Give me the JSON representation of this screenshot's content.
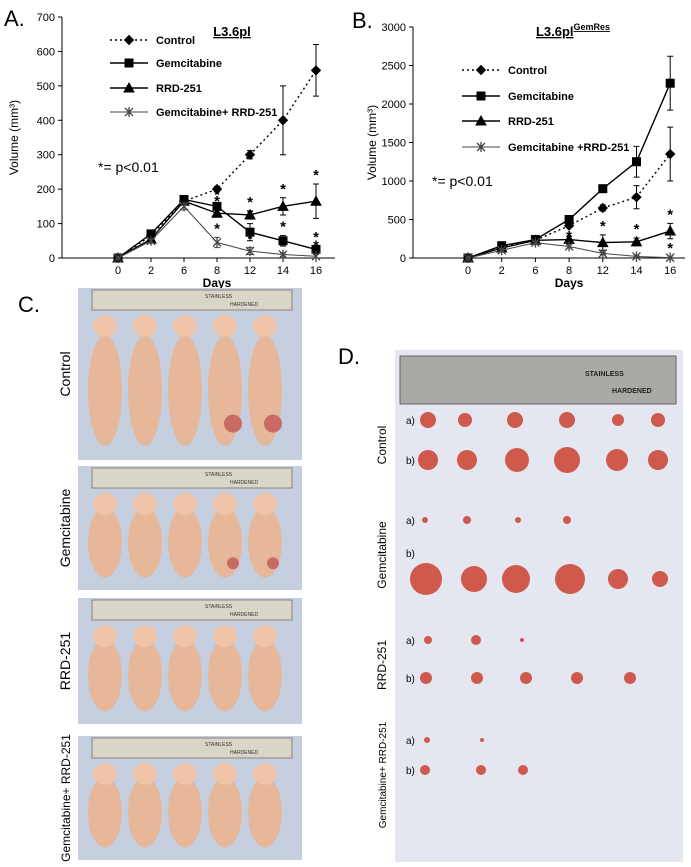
{
  "chart_data": [
    {
      "type": "line",
      "title": "L3.6pl",
      "y_label": "Volume (mm³)",
      "x_label": "Days",
      "categories": [
        "0",
        "2",
        "6",
        "8",
        "12",
        "14",
        "16"
      ],
      "ylim": [
        0,
        700
      ],
      "yticks": [
        0,
        100,
        200,
        300,
        400,
        500,
        600,
        700
      ],
      "sig_symbol": "*",
      "note": "*= p<0.01",
      "series": [
        {
          "name": "Control",
          "color": "#000000",
          "dash": "dotted",
          "marker": "diamond",
          "values": [
            0,
            65,
            165,
            200,
            300,
            400,
            545
          ],
          "errors": [
            0,
            5,
            10,
            8,
            12,
            100,
            75
          ],
          "significant": [
            false,
            false,
            false,
            false,
            false,
            false,
            false
          ]
        },
        {
          "name": "Gemcitabine",
          "color": "#000000",
          "dash": "solid",
          "marker": "square",
          "values": [
            0,
            70,
            170,
            150,
            75,
            50,
            25
          ],
          "errors": [
            0,
            5,
            8,
            8,
            25,
            15,
            10
          ],
          "significant": [
            false,
            false,
            false,
            true,
            true,
            true,
            true
          ]
        },
        {
          "name": "RRD-251",
          "color": "#000000",
          "dash": "solid",
          "marker": "triangle",
          "values": [
            0,
            55,
            165,
            130,
            125,
            150,
            165
          ],
          "errors": [
            0,
            5,
            8,
            10,
            12,
            25,
            50
          ],
          "significant": [
            false,
            false,
            false,
            true,
            true,
            true,
            true
          ]
        },
        {
          "name": "Gemcitabine+ RRD-251",
          "color": "#444444",
          "dash": "solid",
          "marker": "star",
          "values": [
            0,
            50,
            150,
            45,
            20,
            10,
            5
          ],
          "errors": [
            0,
            5,
            10,
            15,
            10,
            5,
            5
          ],
          "significant": [
            false,
            false,
            false,
            true,
            true,
            true,
            true
          ]
        }
      ]
    },
    {
      "type": "line",
      "title": "L3.6pl",
      "title_sup": "GemRes",
      "y_label": "Volume (mm³)",
      "x_label": "Days",
      "categories": [
        "0",
        "2",
        "6",
        "8",
        "12",
        "14",
        "16"
      ],
      "ylim": [
        0,
        3000
      ],
      "yticks": [
        0,
        500,
        1000,
        1500,
        2000,
        2500,
        3000
      ],
      "sig_symbol": "*",
      "note": "*= p<0.01",
      "series": [
        {
          "name": "Control",
          "color": "#000000",
          "dash": "dotted",
          "marker": "diamond",
          "values": [
            0,
            140,
            230,
            420,
            650,
            790,
            1350
          ],
          "errors": [
            0,
            10,
            15,
            20,
            40,
            150,
            350
          ],
          "significant": [
            false,
            false,
            false,
            false,
            false,
            false,
            false
          ]
        },
        {
          "name": "Gemcitabine",
          "color": "#000000",
          "dash": "solid",
          "marker": "square",
          "values": [
            0,
            160,
            240,
            500,
            900,
            1250,
            2270
          ],
          "errors": [
            0,
            10,
            15,
            25,
            40,
            200,
            350
          ],
          "significant": [
            false,
            false,
            false,
            false,
            false,
            false,
            false
          ]
        },
        {
          "name": "RRD-251",
          "color": "#000000",
          "dash": "solid",
          "marker": "triangle",
          "values": [
            0,
            130,
            230,
            240,
            200,
            210,
            350
          ],
          "errors": [
            0,
            10,
            20,
            40,
            100,
            50,
            100
          ],
          "significant": [
            false,
            false,
            false,
            false,
            true,
            true,
            true
          ]
        },
        {
          "name": "Gemcitabine +RRD-251",
          "color": "#444444",
          "dash": "solid",
          "marker": "star",
          "values": [
            0,
            100,
            200,
            150,
            60,
            20,
            5
          ],
          "errors": [
            0,
            10,
            15,
            20,
            15,
            10,
            5
          ],
          "significant": [
            false,
            false,
            false,
            true,
            false,
            false,
            true
          ]
        }
      ]
    }
  ],
  "panels": {
    "A": "A.",
    "B": "B.",
    "C": "C.",
    "D": "D."
  },
  "photo_c": {
    "rows": [
      "Control",
      "Gemcitabine",
      "RRD-251",
      "Gemcitabine+ RRD-251"
    ],
    "ruler": [
      "STAINLESS",
      "HARDENED"
    ]
  },
  "photo_d": {
    "groups": [
      "Control",
      "Gemcitabine",
      "RRD-251",
      "Gemcitabine+ RRD-251"
    ],
    "rows": [
      "a)",
      "b)"
    ],
    "ruler": [
      "STAINLESS",
      "HARDENED"
    ]
  }
}
